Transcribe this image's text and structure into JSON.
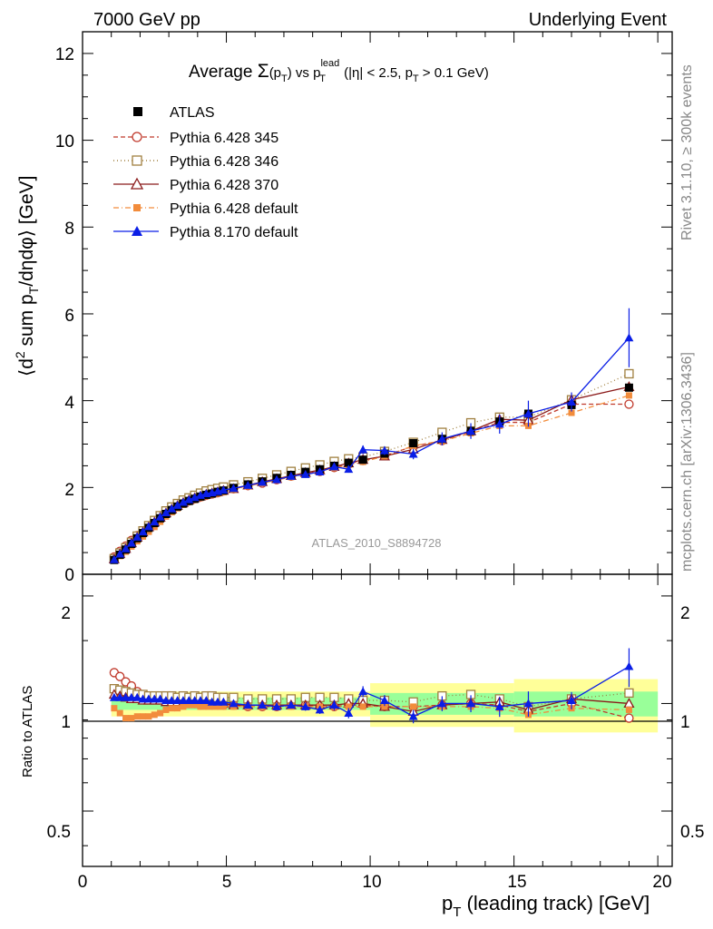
{
  "header": {
    "left": "7000 GeV pp",
    "right": "Underlying Event"
  },
  "side_labels": {
    "rivet": "Rivet 3.1.10, ≥ 300k events",
    "mcplots": "mcplots.cern.ch [arXiv:1306.3436]"
  },
  "chart_data": [
    {
      "type": "line",
      "panel": "main",
      "title": {
        "prefix": "Average ",
        "sigma": "Σ",
        "sigma_arg": "(p",
        "sigma_arg_sub": "T",
        "sigma_arg_close": ")",
        "mid": " vs p",
        "mid_sup": "lead",
        "mid_sub": "T",
        "cuts_a": " (|η| < 2.5, p",
        "cuts_sub": "T",
        "cuts_b": " > 0.1 GeV)"
      },
      "ylabel": {
        "a": "⟨d",
        "sup": "2",
        "b": " sum p",
        "sub": "T",
        "c": "/dηdφ⟩ [GeV]"
      },
      "xlim": [
        0,
        20.5
      ],
      "ylim": [
        0,
        12.5
      ],
      "yticks": [
        "12",
        "10",
        "8",
        "6",
        "4",
        "2",
        "0"
      ],
      "watermark": "ATLAS_2010_S8894728",
      "legend_position": "top-left",
      "series": [
        {
          "name": "ATLAS",
          "color": "#000000",
          "marker": "square-filled",
          "x": [
            1.1,
            1.3,
            1.5,
            1.7,
            1.9,
            2.1,
            2.3,
            2.5,
            2.7,
            2.9,
            3.1,
            3.3,
            3.5,
            3.7,
            3.9,
            4.1,
            4.3,
            4.5,
            4.7,
            4.9,
            5.25,
            5.75,
            6.25,
            6.75,
            7.25,
            7.75,
            8.25,
            8.75,
            9.25,
            9.75,
            10.5,
            11.5,
            12.5,
            13.5,
            14.5,
            15.5,
            17.0,
            19.0
          ],
          "y": [
            0.33,
            0.45,
            0.57,
            0.7,
            0.83,
            0.95,
            1.07,
            1.18,
            1.29,
            1.39,
            1.48,
            1.56,
            1.63,
            1.69,
            1.74,
            1.79,
            1.83,
            1.86,
            1.9,
            1.93,
            1.99,
            2.07,
            2.14,
            2.22,
            2.29,
            2.36,
            2.42,
            2.5,
            2.57,
            2.64,
            2.78,
            3.02,
            3.12,
            3.3,
            3.52,
            3.7,
            3.9,
            4.3
          ]
        },
        {
          "name": "Pythia 6.428 345",
          "color": "#c0392b",
          "marker": "circle-open",
          "dash": "5,3",
          "x": [
            1.1,
            1.3,
            1.5,
            1.7,
            1.9,
            2.1,
            2.3,
            2.5,
            2.7,
            2.9,
            3.1,
            3.3,
            3.5,
            3.7,
            3.9,
            4.1,
            4.3,
            4.5,
            4.7,
            4.9,
            5.25,
            5.75,
            6.25,
            6.75,
            7.25,
            7.75,
            8.25,
            8.75,
            9.25,
            9.75,
            10.5,
            11.5,
            12.5,
            13.5,
            14.5,
            15.5,
            17.0,
            19.0
          ],
          "y": [
            0.4,
            0.53,
            0.65,
            0.78,
            0.89,
            1.0,
            1.11,
            1.22,
            1.33,
            1.43,
            1.51,
            1.58,
            1.64,
            1.69,
            1.74,
            1.78,
            1.82,
            1.85,
            1.88,
            1.92,
            1.97,
            2.04,
            2.1,
            2.18,
            2.26,
            2.33,
            2.37,
            2.46,
            2.55,
            2.62,
            2.73,
            2.95,
            3.08,
            3.29,
            3.5,
            3.5,
            3.92,
            3.92
          ]
        },
        {
          "name": "Pythia 6.428 346",
          "color": "#a08040",
          "marker": "square-open",
          "dash": "1,3",
          "x": [
            1.1,
            1.3,
            1.5,
            1.7,
            1.9,
            2.1,
            2.3,
            2.5,
            2.7,
            2.9,
            3.1,
            3.3,
            3.5,
            3.7,
            3.9,
            4.1,
            4.3,
            4.5,
            4.7,
            4.9,
            5.25,
            5.75,
            6.25,
            6.75,
            7.25,
            7.75,
            8.25,
            8.75,
            9.25,
            9.75,
            10.5,
            11.5,
            12.5,
            13.5,
            14.5,
            15.5,
            17.0,
            19.0
          ],
          "y": [
            0.36,
            0.49,
            0.61,
            0.74,
            0.88,
            1.0,
            1.12,
            1.24,
            1.35,
            1.46,
            1.55,
            1.63,
            1.71,
            1.76,
            1.82,
            1.87,
            1.92,
            1.95,
            1.98,
            2.01,
            2.06,
            2.13,
            2.21,
            2.29,
            2.37,
            2.45,
            2.52,
            2.6,
            2.66,
            2.7,
            2.83,
            3.04,
            3.27,
            3.49,
            3.62,
            3.62,
            4.02,
            4.62
          ]
        },
        {
          "name": "Pythia 6.428 370",
          "color": "#8b1a1a",
          "marker": "triangle-open",
          "dash": "",
          "x": [
            1.1,
            1.3,
            1.5,
            1.7,
            1.9,
            2.1,
            2.3,
            2.5,
            2.7,
            2.9,
            3.1,
            3.3,
            3.5,
            3.7,
            3.9,
            4.1,
            4.3,
            4.5,
            4.7,
            4.9,
            5.25,
            5.75,
            6.25,
            6.75,
            7.25,
            7.75,
            8.25,
            8.75,
            9.25,
            9.75,
            10.5,
            11.5,
            12.5,
            13.5,
            14.5,
            15.5,
            17.0,
            19.0
          ],
          "y": [
            0.35,
            0.47,
            0.59,
            0.72,
            0.85,
            0.97,
            1.09,
            1.2,
            1.31,
            1.41,
            1.5,
            1.58,
            1.65,
            1.71,
            1.76,
            1.8,
            1.84,
            1.87,
            1.9,
            1.93,
            1.97,
            2.05,
            2.13,
            2.2,
            2.27,
            2.34,
            2.4,
            2.48,
            2.56,
            2.64,
            2.72,
            2.88,
            3.1,
            3.3,
            3.57,
            3.55,
            4.02,
            4.32
          ]
        },
        {
          "name": "Pythia 6.428 default",
          "color": "#f28c3c",
          "marker": "square-filled",
          "dash": "6,3,1,3",
          "x": [
            1.1,
            1.3,
            1.5,
            1.7,
            1.9,
            2.1,
            2.3,
            2.5,
            2.7,
            2.9,
            3.1,
            3.3,
            3.5,
            3.7,
            3.9,
            4.1,
            4.3,
            4.5,
            4.7,
            4.9,
            5.25,
            5.75,
            6.25,
            6.75,
            7.25,
            7.75,
            8.25,
            8.75,
            9.25,
            9.75,
            10.5,
            11.5,
            12.5,
            13.5,
            14.5,
            15.5,
            17.0,
            19.0
          ],
          "y": [
            0.32,
            0.42,
            0.52,
            0.64,
            0.76,
            0.87,
            0.98,
            1.09,
            1.21,
            1.33,
            1.43,
            1.52,
            1.6,
            1.67,
            1.71,
            1.76,
            1.8,
            1.83,
            1.86,
            1.89,
            1.95,
            2.03,
            2.1,
            2.17,
            2.24,
            2.31,
            2.38,
            2.45,
            2.52,
            2.59,
            2.72,
            2.96,
            3.07,
            3.25,
            3.42,
            3.42,
            3.72,
            4.12
          ]
        },
        {
          "name": "Pythia 8.170 default",
          "color": "#0a1ee6",
          "marker": "triangle-filled",
          "dash": "",
          "x": [
            1.1,
            1.3,
            1.5,
            1.7,
            1.9,
            2.1,
            2.3,
            2.5,
            2.7,
            2.9,
            3.1,
            3.3,
            3.5,
            3.7,
            3.9,
            4.1,
            4.3,
            4.5,
            4.7,
            4.9,
            5.25,
            5.75,
            6.25,
            6.75,
            7.25,
            7.75,
            8.25,
            8.75,
            9.25,
            9.75,
            10.5,
            11.5,
            12.5,
            13.5,
            14.5,
            15.5,
            17.0,
            19.0
          ],
          "y": [
            0.34,
            0.47,
            0.59,
            0.72,
            0.86,
            0.98,
            1.1,
            1.21,
            1.32,
            1.42,
            1.51,
            1.59,
            1.66,
            1.72,
            1.77,
            1.82,
            1.86,
            1.88,
            1.91,
            1.94,
            1.98,
            2.05,
            2.12,
            2.18,
            2.26,
            2.3,
            2.36,
            2.48,
            2.42,
            2.87,
            2.85,
            2.77,
            3.12,
            3.3,
            3.46,
            3.7,
            3.97,
            5.45
          ],
          "err": [
            0.01,
            0.01,
            0.01,
            0.01,
            0.01,
            0.01,
            0.01,
            0.01,
            0.01,
            0.01,
            0.01,
            0.01,
            0.02,
            0.02,
            0.02,
            0.02,
            0.02,
            0.02,
            0.02,
            0.02,
            0.03,
            0.04,
            0.04,
            0.05,
            0.05,
            0.06,
            0.06,
            0.08,
            0.08,
            0.1,
            0.1,
            0.12,
            0.15,
            0.18,
            0.22,
            0.3,
            0.22,
            0.68
          ]
        }
      ]
    },
    {
      "type": "line",
      "panel": "ratio",
      "ylabel": "Ratio to ATLAS",
      "xlabel": {
        "a": "p",
        "sub": "T",
        "b": " (leading track) [GeV]"
      },
      "xlim": [
        0,
        20.5
      ],
      "ylim_log": [
        0.35,
        2.3
      ],
      "yticks": [
        "2",
        "1",
        "0.5"
      ],
      "xticks": [
        "0",
        "5",
        "10",
        "15",
        "20"
      ],
      "uncertainty_bands": {
        "inner_color": "#99ff99",
        "outer_color": "#ffff99",
        "bins": [
          {
            "lo": 1.0,
            "hi": 10.0,
            "inner": 0.04,
            "outer": 0.08
          },
          {
            "lo": 10.0,
            "hi": 15.0,
            "inner": 0.07,
            "outer": 0.14
          },
          {
            "lo": 15.0,
            "hi": 20.0,
            "inner": 0.08,
            "outer": 0.17
          }
        ]
      },
      "series": [
        {
          "name": "Pythia 6.428 345",
          "y": [
            1.22,
            1.19,
            1.15,
            1.12,
            1.08,
            1.06,
            1.05,
            1.04,
            1.04,
            1.03,
            1.02,
            1.01,
            1.0,
            1.0,
            1.0,
            0.99,
            0.99,
            0.99,
            0.99,
            0.99,
            0.99,
            0.98,
            0.98,
            0.98,
            0.99,
            0.99,
            0.98,
            0.98,
            0.99,
            0.99,
            0.98,
            0.98,
            0.99,
            1.0,
            0.99,
            0.95,
            1.0,
            0.91
          ]
        },
        {
          "name": "Pythia 6.428 346",
          "y": [
            1.1,
            1.09,
            1.08,
            1.07,
            1.06,
            1.06,
            1.05,
            1.05,
            1.05,
            1.05,
            1.05,
            1.04,
            1.05,
            1.04,
            1.05,
            1.04,
            1.05,
            1.05,
            1.04,
            1.04,
            1.04,
            1.03,
            1.03,
            1.03,
            1.03,
            1.04,
            1.04,
            1.04,
            1.03,
            1.02,
            1.02,
            1.01,
            1.05,
            1.06,
            1.03,
            0.98,
            1.03,
            1.07
          ]
        },
        {
          "name": "Pythia 6.428 370",
          "y": [
            1.06,
            1.05,
            1.04,
            1.03,
            1.03,
            1.02,
            1.02,
            1.02,
            1.02,
            1.01,
            1.01,
            1.01,
            1.01,
            1.01,
            1.01,
            1.01,
            1.0,
            1.0,
            1.0,
            1.0,
            0.99,
            0.99,
            0.99,
            0.99,
            0.99,
            0.99,
            0.99,
            0.99,
            1.0,
            1.0,
            0.98,
            0.95,
            0.99,
            1.0,
            1.01,
            0.96,
            1.03,
            1.0
          ]
        },
        {
          "name": "Pythia 6.428 default",
          "y": [
            0.97,
            0.94,
            0.91,
            0.91,
            0.92,
            0.92,
            0.92,
            0.93,
            0.94,
            0.96,
            0.97,
            0.97,
            0.98,
            0.99,
            0.99,
            0.98,
            0.98,
            0.98,
            0.98,
            0.98,
            0.98,
            0.98,
            0.98,
            0.98,
            0.98,
            0.98,
            0.98,
            0.98,
            0.98,
            0.98,
            0.98,
            0.98,
            0.98,
            0.98,
            0.97,
            0.93,
            0.97,
            0.96
          ]
        },
        {
          "name": "Pythia 8.170 default",
          "y": [
            1.04,
            1.04,
            1.04,
            1.04,
            1.04,
            1.03,
            1.03,
            1.03,
            1.03,
            1.02,
            1.02,
            1.02,
            1.02,
            1.02,
            1.02,
            1.02,
            1.02,
            1.01,
            1.01,
            1.01,
            1.0,
            0.99,
            0.99,
            0.98,
            0.99,
            0.98,
            0.96,
            0.99,
            0.94,
            1.08,
            1.02,
            0.92,
            1.0,
            1.0,
            0.98,
            1.0,
            1.02,
            1.27
          ]
        }
      ]
    }
  ]
}
